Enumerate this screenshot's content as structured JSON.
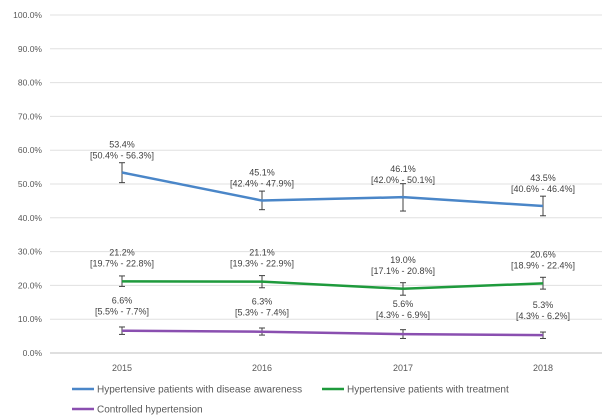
{
  "chart_data": {
    "type": "line",
    "categories": [
      "2015",
      "2016",
      "2017",
      "2018"
    ],
    "ylim": [
      0,
      100
    ],
    "yticks": [
      "0.0%",
      "10.0%",
      "20.0%",
      "30.0%",
      "40.0%",
      "50.0%",
      "60.0%",
      "70.0%",
      "80.0%",
      "90.0%",
      "100.0%"
    ],
    "grid": true,
    "legend_position": "bottom",
    "error_bars": true,
    "series": [
      {
        "name": "Hypertensive patients with disease awareness",
        "color": "#4a86c8",
        "values": [
          53.4,
          45.1,
          46.1,
          43.5
        ],
        "ci_low": [
          50.4,
          42.4,
          42.0,
          40.6
        ],
        "ci_high": [
          56.3,
          47.9,
          50.1,
          46.4
        ],
        "value_labels": [
          "53.4%",
          "45.1%",
          "46.1%",
          "43.5%"
        ],
        "ci_labels": [
          "[50.4% - 56.3%]",
          "[42.4% - 47.9%]",
          "[42.0% - 50.1%]",
          "[40.6% - 46.4%]"
        ]
      },
      {
        "name": "Hypertensive patients with treatment",
        "color": "#1e9a3c",
        "values": [
          21.2,
          21.1,
          19.0,
          20.6
        ],
        "ci_low": [
          19.7,
          19.3,
          17.1,
          18.9
        ],
        "ci_high": [
          22.8,
          22.9,
          20.8,
          22.4
        ],
        "value_labels": [
          "21.2%",
          "21.1%",
          "19.0%",
          "20.6%"
        ],
        "ci_labels": [
          "[19.7% - 22.8%]",
          "[19.3% - 22.9%]",
          "[17.1% - 20.8%]",
          "[18.9% - 22.4%]"
        ]
      },
      {
        "name": "Controlled hypertension",
        "color": "#8a4fb0",
        "values": [
          6.6,
          6.3,
          5.6,
          5.3
        ],
        "ci_low": [
          5.5,
          5.3,
          4.3,
          4.3
        ],
        "ci_high": [
          7.7,
          7.4,
          6.9,
          6.2
        ],
        "value_labels": [
          "6.6%",
          "6.3%",
          "5.6%",
          "5.3%"
        ],
        "ci_labels": [
          "[5.5% - 7.7%]",
          "[5.3% - 7.4%]",
          "[4.3% - 6.9%]",
          "[4.3% - 6.2%]"
        ]
      }
    ]
  }
}
